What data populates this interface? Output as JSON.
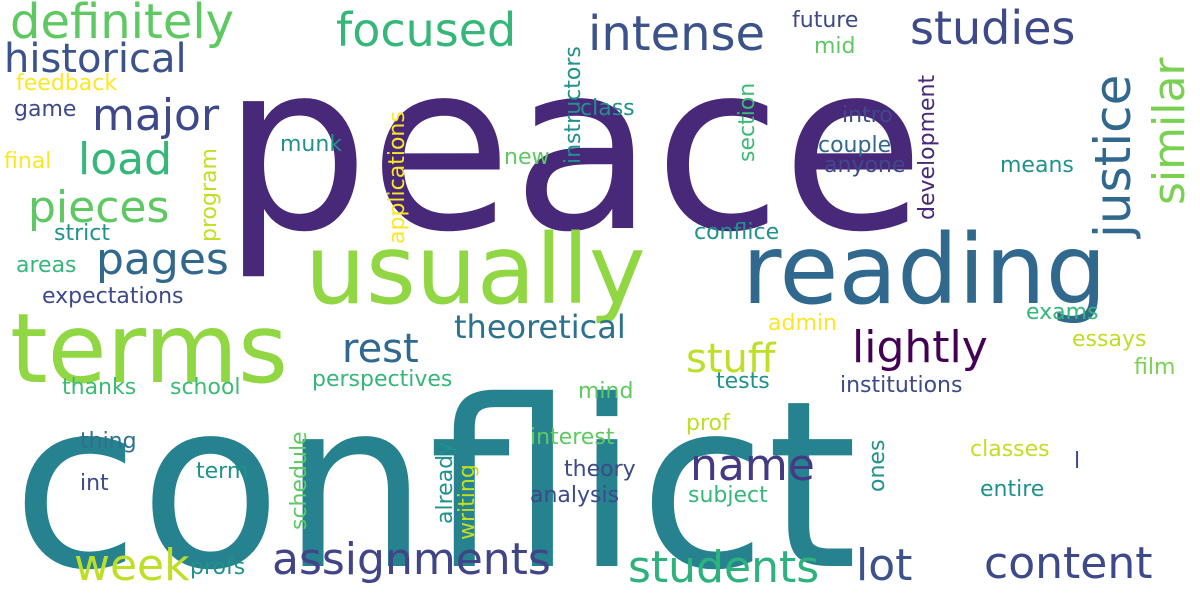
{
  "palette": {
    "dark_purple": "#482878",
    "purple": "#440154",
    "indigo": "#3e4989",
    "blue": "#31688e",
    "teal": "#26828e",
    "cyan": "#1f9e89",
    "green": "#35b779",
    "light_green": "#6ece58",
    "lime": "#b5de2b",
    "yellow": "#fde725"
  },
  "words": [
    {
      "text": "peace",
      "color": "#482878"
    },
    {
      "text": "conflict",
      "color": "#26828e"
    },
    {
      "text": "usually",
      "color": "#90d743"
    },
    {
      "text": "reading",
      "color": "#31688e"
    },
    {
      "text": "terms",
      "color": "#90d743"
    },
    {
      "text": "definitely",
      "color": "#5ec962"
    },
    {
      "text": "focused",
      "color": "#35b779"
    },
    {
      "text": "intense",
      "color": "#3b528b"
    },
    {
      "text": "studies",
      "color": "#3e4989"
    },
    {
      "text": "historical",
      "color": "#3b528b"
    },
    {
      "text": "major",
      "color": "#3e4989"
    },
    {
      "text": "load",
      "color": "#35b779"
    },
    {
      "text": "pieces",
      "color": "#5ec962"
    },
    {
      "text": "pages",
      "color": "#31688e"
    },
    {
      "text": "justice",
      "color": "#31688e"
    },
    {
      "text": "similar",
      "color": "#7ad151"
    },
    {
      "text": "rest",
      "color": "#31688e"
    },
    {
      "text": "theoretical",
      "color": "#2c728e"
    },
    {
      "text": "lightly",
      "color": "#440154"
    },
    {
      "text": "stuff",
      "color": "#bddf26"
    },
    {
      "text": "name",
      "color": "#443983"
    },
    {
      "text": "week",
      "color": "#bddf26"
    },
    {
      "text": "assignments",
      "color": "#414487"
    },
    {
      "text": "students",
      "color": "#2db27d"
    },
    {
      "text": "lot",
      "color": "#3b528b"
    },
    {
      "text": "content",
      "color": "#3e4989"
    },
    {
      "text": "feedback",
      "color": "#fde725"
    },
    {
      "text": "game",
      "color": "#3e4989"
    },
    {
      "text": "final",
      "color": "#fde725"
    },
    {
      "text": "strict",
      "color": "#21918c"
    },
    {
      "text": "areas",
      "color": "#35b779"
    },
    {
      "text": "expectations",
      "color": "#3e4989"
    },
    {
      "text": "program",
      "color": "#c2df23"
    },
    {
      "text": "thanks",
      "color": "#3bbb75"
    },
    {
      "text": "school",
      "color": "#3bbb75"
    },
    {
      "text": "perspectives",
      "color": "#35b779"
    },
    {
      "text": "thing",
      "color": "#2c728e"
    },
    {
      "text": "int",
      "color": "#3e4989"
    },
    {
      "text": "term",
      "color": "#21918c"
    },
    {
      "text": "schedule",
      "color": "#5ec962"
    },
    {
      "text": "already",
      "color": "#21918c"
    },
    {
      "text": "writing",
      "color": "#c2df23"
    },
    {
      "text": "profs",
      "color": "#21918c"
    },
    {
      "text": "munk",
      "color": "#21918c"
    },
    {
      "text": "applications",
      "color": "#fde725"
    },
    {
      "text": "instructors",
      "color": "#21918c"
    },
    {
      "text": "new",
      "color": "#5ec962"
    },
    {
      "text": "class",
      "color": "#21918c"
    },
    {
      "text": "section",
      "color": "#3bbb75"
    },
    {
      "text": "future",
      "color": "#3e4989"
    },
    {
      "text": "mid",
      "color": "#5ec962"
    },
    {
      "text": "development",
      "color": "#482878"
    },
    {
      "text": "intro",
      "color": "#3e4989"
    },
    {
      "text": "couple",
      "color": "#31688e"
    },
    {
      "text": "anyone",
      "color": "#3e4989"
    },
    {
      "text": "means",
      "color": "#21918c"
    },
    {
      "text": "conflice",
      "color": "#21918c"
    },
    {
      "text": "admin",
      "color": "#fde725"
    },
    {
      "text": "exams",
      "color": "#35b779"
    },
    {
      "text": "essays",
      "color": "#bddf26"
    },
    {
      "text": "film",
      "color": "#7ad151"
    },
    {
      "text": "tests",
      "color": "#21918c"
    },
    {
      "text": "institutions",
      "color": "#3e4989"
    },
    {
      "text": "mind",
      "color": "#5ec962"
    },
    {
      "text": "prof",
      "color": "#bddf26"
    },
    {
      "text": "interest",
      "color": "#5ec962"
    },
    {
      "text": "theory",
      "color": "#3e4989"
    },
    {
      "text": "analysis",
      "color": "#3e4989"
    },
    {
      "text": "subject",
      "color": "#35b779"
    },
    {
      "text": "ones",
      "color": "#21918c"
    },
    {
      "text": "classes",
      "color": "#c2df23"
    },
    {
      "text": "l",
      "color": "#3e4989"
    },
    {
      "text": "entire",
      "color": "#21918c"
    }
  ]
}
